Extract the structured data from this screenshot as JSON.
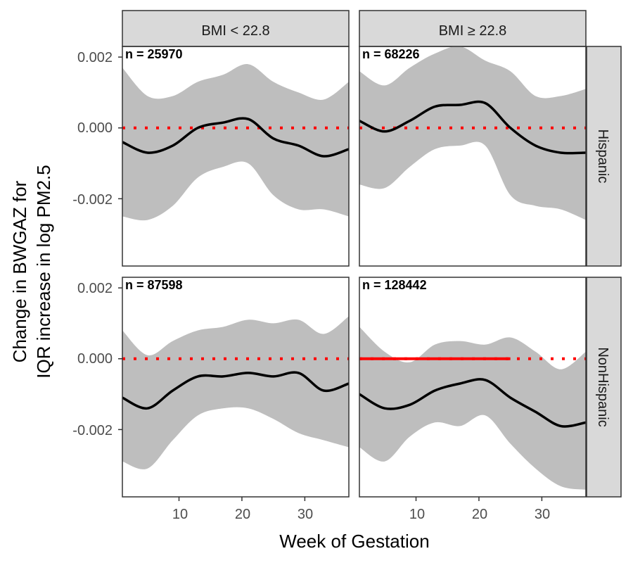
{
  "chart_data": {
    "type": "line",
    "xlabel": "Week of Gestation",
    "ylabel_lines": [
      "Change in BWGAZ for",
      "IQR increase in log PM2.5"
    ],
    "x_ticks": [
      10,
      20,
      30
    ],
    "x_tick_labels": [
      "10",
      "20",
      "30"
    ],
    "y_ticks": [
      -0.002,
      0.0,
      0.002
    ],
    "y_tick_labels": [
      "-0.002",
      "0.000",
      "0.002"
    ],
    "xlim": [
      1,
      37
    ],
    "ylim": [
      -0.0039,
      0.0023
    ],
    "columns": [
      "BMI < 22.8",
      "BMI ≥ 22.8"
    ],
    "rows": [
      "Hispanic",
      "NonHispanic"
    ],
    "colors": {
      "ribbon": "#bebebe",
      "line": "#000000",
      "reference": "#ff0000",
      "strip": "#d9d9d9",
      "border": "#333333"
    },
    "panels": [
      {
        "row": "Hispanic",
        "column": "BMI < 22.8",
        "n_label": "n = 25970",
        "x": [
          1,
          5,
          9,
          13,
          17,
          21,
          25,
          29,
          33,
          37
        ],
        "estimate": [
          -0.0004,
          -0.0007,
          -0.0005,
          0.0,
          0.00015,
          0.00025,
          -0.0003,
          -0.0005,
          -0.0008,
          -0.0006
        ],
        "lower": [
          -0.0025,
          -0.0026,
          -0.0022,
          -0.0014,
          -0.0011,
          -0.001,
          -0.0019,
          -0.0023,
          -0.0023,
          -0.0025
        ],
        "upper": [
          0.0017,
          0.0009,
          0.0009,
          0.0013,
          0.0015,
          0.0018,
          0.0013,
          0.001,
          0.0008,
          0.0013
        ]
      },
      {
        "row": "Hispanic",
        "column": "BMI ≥ 22.8",
        "n_label": "n = 68226",
        "x": [
          1,
          5,
          9,
          13,
          17,
          21,
          25,
          29,
          33,
          37
        ],
        "estimate": [
          0.0002,
          -0.0001,
          0.0002,
          0.0006,
          0.00065,
          0.0007,
          0.0,
          -0.0005,
          -0.0007,
          -0.0007
        ],
        "lower": [
          -0.0016,
          -0.0017,
          -0.0011,
          -0.0006,
          -0.0005,
          -0.0005,
          -0.0019,
          -0.0022,
          -0.0023,
          -0.0026
        ],
        "upper": [
          0.0016,
          0.0012,
          0.0017,
          0.0021,
          0.0023,
          0.0019,
          0.0016,
          0.0009,
          0.0009,
          0.0011
        ]
      },
      {
        "row": "NonHispanic",
        "column": "BMI < 22.8",
        "n_label": "n = 87598",
        "x": [
          1,
          5,
          9,
          13,
          17,
          21,
          25,
          29,
          33,
          37
        ],
        "estimate": [
          -0.0011,
          -0.0014,
          -0.0009,
          -0.0005,
          -0.0005,
          -0.0004,
          -0.0005,
          -0.0004,
          -0.0009,
          -0.0007
        ],
        "lower": [
          -0.0029,
          -0.0031,
          -0.0023,
          -0.0016,
          -0.0014,
          -0.0014,
          -0.0017,
          -0.0021,
          -0.0023,
          -0.0025
        ],
        "upper": [
          0.0008,
          0.0001,
          0.0005,
          0.0008,
          0.0009,
          0.0011,
          0.001,
          0.0011,
          0.0007,
          0.0012
        ]
      },
      {
        "row": "NonHispanic",
        "column": "BMI ≥ 22.8",
        "n_label": "n = 128442",
        "x": [
          1,
          5,
          9,
          13,
          17,
          21,
          25,
          29,
          33,
          37
        ],
        "estimate": [
          -0.001,
          -0.0014,
          -0.0013,
          -0.0009,
          -0.0007,
          -0.0006,
          -0.0011,
          -0.0015,
          -0.0019,
          -0.0018
        ],
        "lower": [
          -0.0025,
          -0.0029,
          -0.0022,
          -0.0018,
          -0.0019,
          -0.0016,
          -0.0024,
          -0.0031,
          -0.0036,
          -0.0037
        ],
        "upper": [
          0.0009,
          0.0002,
          -0.0001,
          0.0004,
          0.0005,
          0.0004,
          0.0006,
          0.0002,
          -0.0003,
          0.0002
        ]
      }
    ],
    "reference_line": {
      "y": 0.0,
      "style_by_panel": [
        "dotted",
        "dotted",
        "dotted",
        "solid-then-dotted"
      ]
    }
  }
}
